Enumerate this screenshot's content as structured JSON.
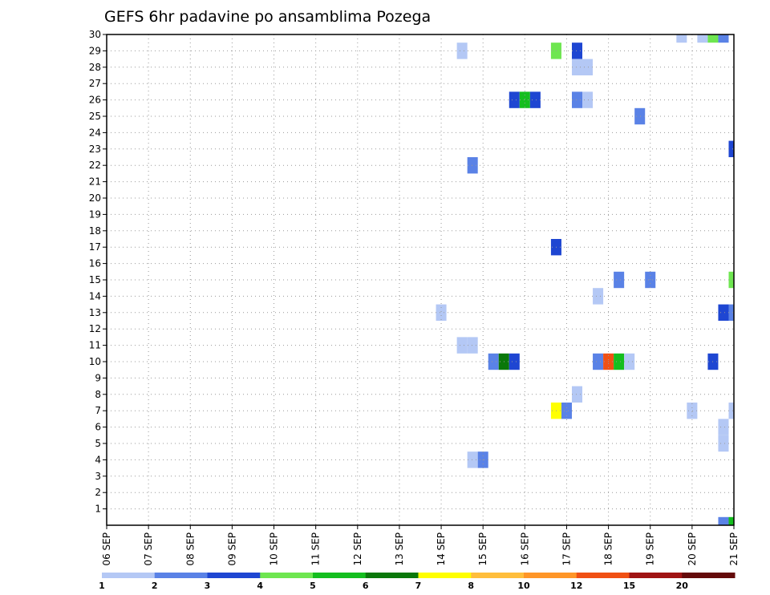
{
  "chart_data": {
    "type": "heatmap",
    "title": "GEFS 6hr padavine po ansamblima Pozega",
    "xlabel": "",
    "ylabel": "",
    "x_tick_labels": [
      "06 SEP",
      "07 SEP",
      "08 SEP",
      "09 SEP",
      "10 SEP",
      "11 SEP",
      "12 SEP",
      "13 SEP",
      "14 SEP",
      "15 SEP",
      "16 SEP",
      "17 SEP",
      "18 SEP",
      "19 SEP",
      "20 SEP",
      "21 SEP"
    ],
    "y_tick_labels": [
      "1",
      "2",
      "3",
      "4",
      "5",
      "6",
      "7",
      "8",
      "9",
      "10",
      "11",
      "12",
      "13",
      "14",
      "15",
      "16",
      "17",
      "18",
      "19",
      "20",
      "21",
      "22",
      "23",
      "24",
      "25",
      "26",
      "27",
      "28",
      "29",
      "30"
    ],
    "x_unit": "days since 06 SEP 00Z",
    "xlim": [
      0,
      15
    ],
    "ylim": [
      0,
      30
    ],
    "grid": true,
    "colorbar": {
      "labels": [
        "1",
        "2",
        "3",
        "4",
        "5",
        "6",
        "7",
        "8",
        "10",
        "12",
        "15",
        "20"
      ],
      "colors": [
        "#b4c8f5",
        "#5a82e6",
        "#1e46d2",
        "#6ee650",
        "#14be1e",
        "#0a780a",
        "#ffff00",
        "#ffbe3c",
        "#ff9628",
        "#f05014",
        "#a01414",
        "#640a0a"
      ]
    },
    "cells": [
      {
        "x": 13.75,
        "y": 30,
        "color": "#b4c8f5"
      },
      {
        "x": 14.25,
        "y": 30,
        "color": "#b4c8f5"
      },
      {
        "x": 14.5,
        "y": 30,
        "color": "#6ee650"
      },
      {
        "x": 14.75,
        "y": 30,
        "color": "#5a82e6"
      },
      {
        "x": 8.5,
        "y": 29,
        "color": "#b4c8f5"
      },
      {
        "x": 10.75,
        "y": 29,
        "color": "#6ee650"
      },
      {
        "x": 11.25,
        "y": 29,
        "color": "#1e46d2"
      },
      {
        "x": 11.25,
        "y": 28,
        "color": "#b4c8f5"
      },
      {
        "x": 11.5,
        "y": 28,
        "color": "#b4c8f5"
      },
      {
        "x": 9.75,
        "y": 26,
        "color": "#1e46d2"
      },
      {
        "x": 10.0,
        "y": 26,
        "color": "#14be1e"
      },
      {
        "x": 10.25,
        "y": 26,
        "color": "#1e46d2"
      },
      {
        "x": 11.25,
        "y": 26,
        "color": "#5a82e6"
      },
      {
        "x": 11.5,
        "y": 26,
        "color": "#b4c8f5"
      },
      {
        "x": 12.75,
        "y": 25,
        "color": "#5a82e6"
      },
      {
        "x": 15.0,
        "y": 23,
        "color": "#1e46d2"
      },
      {
        "x": 8.75,
        "y": 22,
        "color": "#5a82e6"
      },
      {
        "x": 10.75,
        "y": 17,
        "color": "#1e46d2"
      },
      {
        "x": 12.25,
        "y": 15,
        "color": "#5a82e6"
      },
      {
        "x": 13.0,
        "y": 15,
        "color": "#5a82e6"
      },
      {
        "x": 15.0,
        "y": 15,
        "color": "#6ee650"
      },
      {
        "x": 11.75,
        "y": 14,
        "color": "#b4c8f5"
      },
      {
        "x": 8.0,
        "y": 13,
        "color": "#b4c8f5"
      },
      {
        "x": 14.75,
        "y": 13,
        "color": "#1e46d2"
      },
      {
        "x": 15.0,
        "y": 13,
        "color": "#5a82e6"
      },
      {
        "x": 8.5,
        "y": 11,
        "color": "#b4c8f5"
      },
      {
        "x": 8.75,
        "y": 11,
        "color": "#b4c8f5"
      },
      {
        "x": 9.25,
        "y": 10,
        "color": "#5a82e6"
      },
      {
        "x": 9.5,
        "y": 10,
        "color": "#0a780a"
      },
      {
        "x": 9.75,
        "y": 10,
        "color": "#1e46d2"
      },
      {
        "x": 11.75,
        "y": 10,
        "color": "#5a82e6"
      },
      {
        "x": 12.0,
        "y": 10,
        "color": "#f05014"
      },
      {
        "x": 12.25,
        "y": 10,
        "color": "#14be1e"
      },
      {
        "x": 12.5,
        "y": 10,
        "color": "#b4c8f5"
      },
      {
        "x": 14.5,
        "y": 10,
        "color": "#1e46d2"
      },
      {
        "x": 11.25,
        "y": 8,
        "color": "#b4c8f5"
      },
      {
        "x": 10.75,
        "y": 7,
        "color": "#ffff00"
      },
      {
        "x": 11.0,
        "y": 7,
        "color": "#5a82e6"
      },
      {
        "x": 14.0,
        "y": 7,
        "color": "#b4c8f5"
      },
      {
        "x": 15.0,
        "y": 7,
        "color": "#b4c8f5"
      },
      {
        "x": 14.75,
        "y": 6,
        "color": "#b4c8f5"
      },
      {
        "x": 14.75,
        "y": 5,
        "color": "#b4c8f5"
      },
      {
        "x": 8.75,
        "y": 4,
        "color": "#b4c8f5"
      },
      {
        "x": 9.0,
        "y": 4,
        "color": "#5a82e6"
      },
      {
        "x": 14.75,
        "y": 0,
        "color": "#5a82e6"
      },
      {
        "x": 15.0,
        "y": 0,
        "color": "#14be1e"
      }
    ]
  }
}
